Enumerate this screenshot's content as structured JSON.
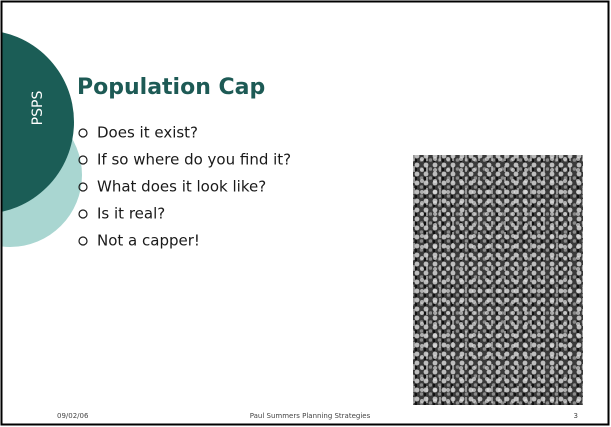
{
  "sidebar": {
    "label": "PSPS"
  },
  "slide": {
    "title": "Population Cap",
    "bullets": [
      "Does it exist?",
      "If so where do you find it?",
      "What does it look like?",
      "Is it real?",
      "Not a capper!"
    ]
  },
  "footer": {
    "date": "09/02/06",
    "presenter": "Paul Summers Planning Strategies",
    "page": "3"
  }
}
